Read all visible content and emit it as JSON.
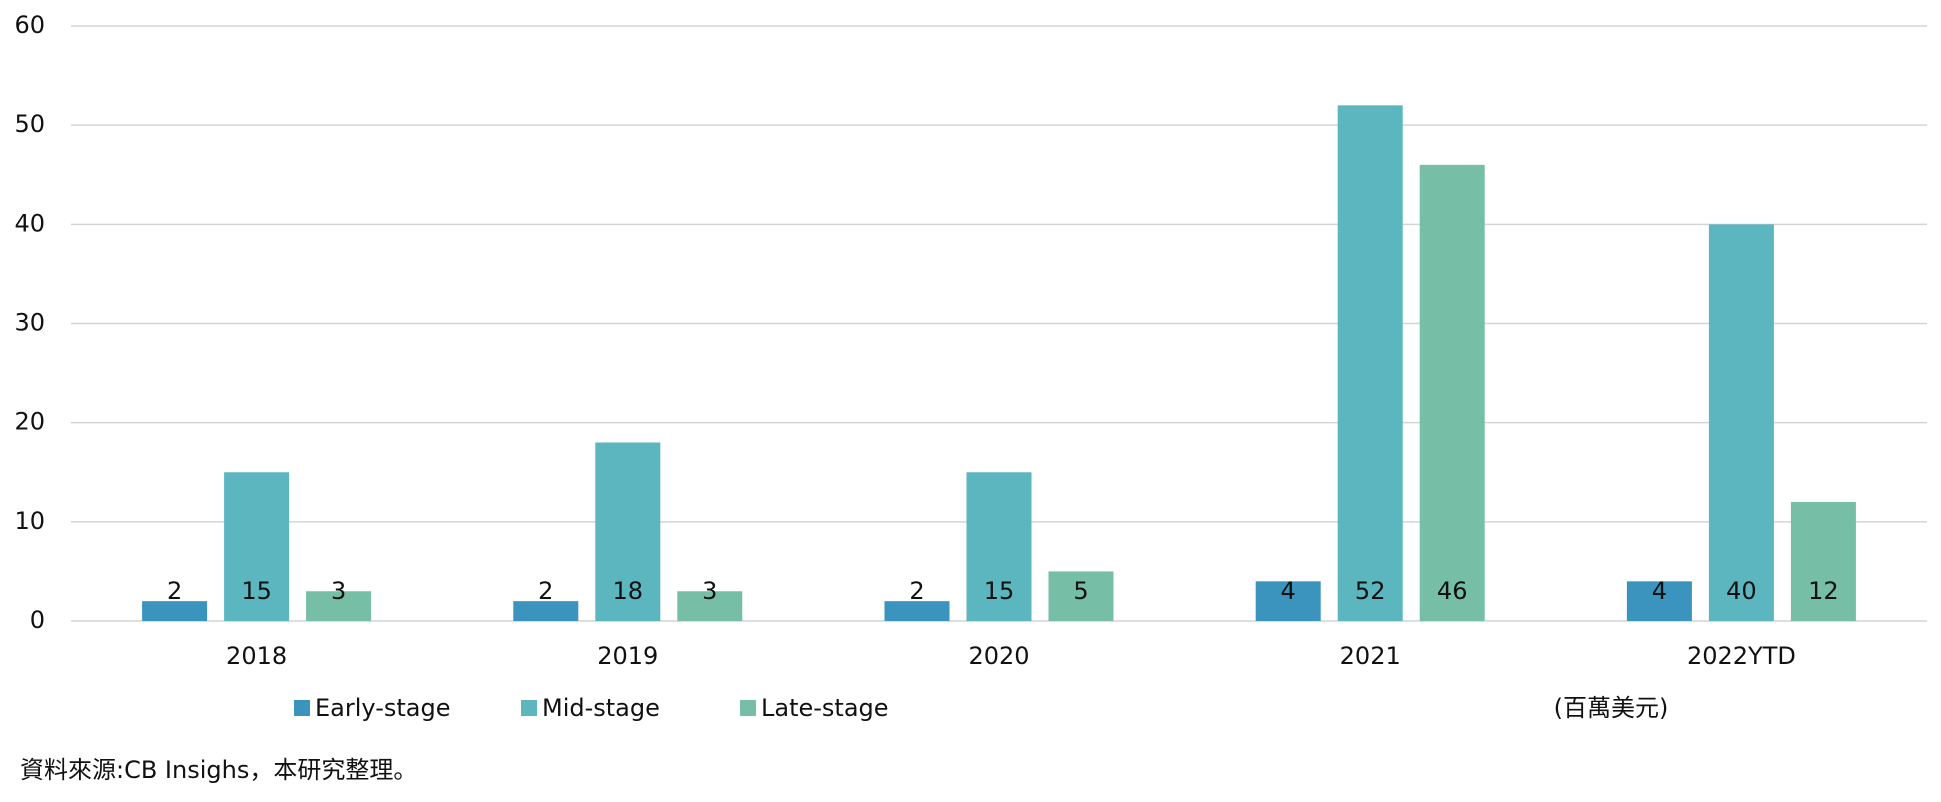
{
  "chart_data": {
    "type": "bar",
    "categories": [
      "2018",
      "2019",
      "2020",
      "2021",
      "2022YTD"
    ],
    "series": [
      {
        "name": "Early-stage",
        "color": "#3a94bd",
        "values": [
          2,
          2,
          2,
          4,
          4
        ]
      },
      {
        "name": "Mid-stage",
        "color": "#5bb6c0",
        "values": [
          15,
          18,
          15,
          52,
          40
        ]
      },
      {
        "name": "Late-stage",
        "color": "#76bea5",
        "values": [
          3,
          3,
          5,
          46,
          12
        ]
      }
    ],
    "ylim": [
      0,
      60
    ],
    "yticks": [
      0,
      10,
      20,
      30,
      40,
      50,
      60
    ],
    "grid": true,
    "unit_note": "(百萬美元)",
    "source": "資料來源:CB Insighs，本研究整理。"
  }
}
